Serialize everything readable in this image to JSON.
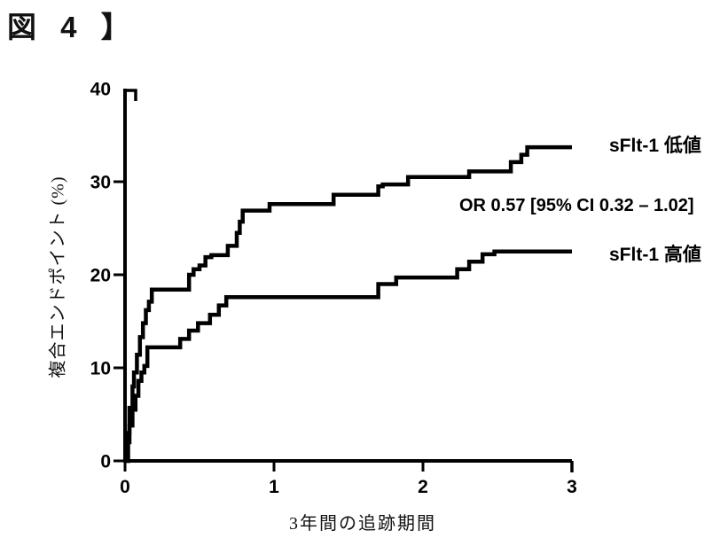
{
  "figure": {
    "caption": "図 4 】"
  },
  "chart_data": {
    "type": "line",
    "subtype": "step-cumulative-incidence",
    "title": "",
    "xlabel": "3年間の追跡期間",
    "ylabel": "複合エンドポイント (%)",
    "xlim": [
      0,
      3
    ],
    "ylim": [
      0,
      40
    ],
    "xticks": [
      0,
      1,
      2,
      3
    ],
    "yticks": [
      0,
      10,
      20,
      30,
      40
    ],
    "grid": false,
    "legend_position": "right-of-curve-ends",
    "annotation": "OR 0.57 [95% CI 0.32 – 1.02]",
    "line_color": "#000000",
    "background_color": "#ffffff",
    "series": [
      {
        "name": "sFlt-1 低値",
        "points": [
          [
            0,
            0
          ],
          [
            0.02,
            3
          ],
          [
            0.03,
            5.7
          ],
          [
            0.05,
            8
          ],
          [
            0.06,
            9.5
          ],
          [
            0.08,
            11.4
          ],
          [
            0.1,
            13.3
          ],
          [
            0.12,
            14.8
          ],
          [
            0.14,
            16.2
          ],
          [
            0.16,
            17.1
          ],
          [
            0.18,
            18.4
          ],
          [
            0.43,
            20.0
          ],
          [
            0.46,
            20.6
          ],
          [
            0.5,
            21.0
          ],
          [
            0.54,
            21.9
          ],
          [
            0.58,
            22.1
          ],
          [
            0.69,
            23.1
          ],
          [
            0.75,
            24.5
          ],
          [
            0.77,
            25.7
          ],
          [
            0.79,
            26.9
          ],
          [
            0.97,
            27.6
          ],
          [
            1.4,
            28.6
          ],
          [
            1.7,
            29.5
          ],
          [
            1.73,
            29.7
          ],
          [
            1.9,
            30.5
          ],
          [
            2.31,
            31.1
          ],
          [
            2.59,
            32.1
          ],
          [
            2.66,
            32.9
          ],
          [
            2.7,
            33.7
          ],
          [
            3.0,
            33.7
          ]
        ]
      },
      {
        "name": "sFlt-1 高値",
        "points": [
          [
            0,
            0
          ],
          [
            0.02,
            2
          ],
          [
            0.03,
            3.8
          ],
          [
            0.05,
            5.5
          ],
          [
            0.07,
            7
          ],
          [
            0.09,
            8.6
          ],
          [
            0.11,
            9.5
          ],
          [
            0.13,
            10.2
          ],
          [
            0.15,
            12.2
          ],
          [
            0.37,
            13.1
          ],
          [
            0.43,
            14.0
          ],
          [
            0.49,
            14.8
          ],
          [
            0.57,
            15.7
          ],
          [
            0.63,
            16.7
          ],
          [
            0.68,
            17.6
          ],
          [
            1.7,
            19.0
          ],
          [
            1.82,
            19.7
          ],
          [
            2.23,
            20.6
          ],
          [
            2.31,
            21.4
          ],
          [
            2.4,
            22.2
          ],
          [
            2.48,
            22.5
          ],
          [
            3.0,
            22.5
          ]
        ]
      }
    ]
  }
}
